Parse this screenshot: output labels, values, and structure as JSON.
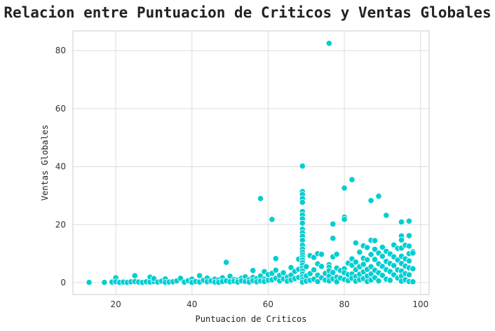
{
  "chart_data": {
    "type": "scatter",
    "title": "Relacion entre Puntuacion de Criticos y Ventas Globales",
    "xlabel": "Puntuacion de Criticos",
    "ylabel": "Ventas Globales",
    "xlim": [
      8.75,
      102.25
    ],
    "ylim": [
      -4.1,
      86.8
    ],
    "xticks": [
      20,
      40,
      60,
      80,
      100
    ],
    "yticks": [
      0,
      20,
      40,
      60,
      80
    ],
    "grid": true,
    "marker_color": "#00CED1",
    "marker_edge_color": "#ffffff",
    "points": [
      [
        13,
        0.1
      ],
      [
        17,
        0.1
      ],
      [
        19,
        0.2
      ],
      [
        20,
        1.7
      ],
      [
        20,
        0.3
      ],
      [
        21,
        0.1
      ],
      [
        22,
        0.2
      ],
      [
        23,
        0.1
      ],
      [
        24,
        0.3
      ],
      [
        25,
        2.4
      ],
      [
        25,
        0.4
      ],
      [
        26,
        0.2
      ],
      [
        27,
        0.1
      ],
      [
        28,
        0.3
      ],
      [
        29,
        1.9
      ],
      [
        29,
        0.2
      ],
      [
        30,
        0.4
      ],
      [
        30,
        1.4
      ],
      [
        31,
        0.2
      ],
      [
        32,
        0.5
      ],
      [
        33,
        1.3
      ],
      [
        33,
        0.1
      ],
      [
        34,
        0.2
      ],
      [
        35,
        0.3
      ],
      [
        36,
        0.6
      ],
      [
        37,
        1.5
      ],
      [
        38,
        0.2
      ],
      [
        39,
        0.7
      ],
      [
        40,
        1.2
      ],
      [
        40,
        0.1
      ],
      [
        41,
        0.4
      ],
      [
        42,
        2.4
      ],
      [
        42,
        0.2
      ],
      [
        43,
        0.8
      ],
      [
        44,
        1.6
      ],
      [
        44,
        0.3
      ],
      [
        45,
        0.6
      ],
      [
        46,
        1.2
      ],
      [
        46,
        0.2
      ],
      [
        47,
        0.9
      ],
      [
        47,
        0.1
      ],
      [
        48,
        1.7
      ],
      [
        48,
        0.4
      ],
      [
        49,
        7.0
      ],
      [
        49,
        0.6
      ],
      [
        50,
        2.2
      ],
      [
        50,
        0.3
      ],
      [
        51,
        1.1
      ],
      [
        51,
        0.5
      ],
      [
        52,
        0.8
      ],
      [
        52,
        0.2
      ],
      [
        53,
        1.5
      ],
      [
        53,
        0.6
      ],
      [
        54,
        2.0
      ],
      [
        54,
        0.4
      ],
      [
        55,
        1.0
      ],
      [
        55,
        0.2
      ],
      [
        56,
        4.2
      ],
      [
        56,
        1.8
      ],
      [
        56,
        0.7
      ],
      [
        57,
        1.4
      ],
      [
        57,
        0.3
      ],
      [
        58,
        29.0
      ],
      [
        58,
        2.3
      ],
      [
        58,
        0.6
      ],
      [
        59,
        3.8
      ],
      [
        59,
        1.2
      ],
      [
        59,
        0.4
      ],
      [
        60,
        2.8
      ],
      [
        60,
        0.8
      ],
      [
        61,
        21.8
      ],
      [
        61,
        3.2
      ],
      [
        61,
        1.0
      ],
      [
        62,
        8.3
      ],
      [
        62,
        4.3
      ],
      [
        62,
        1.5
      ],
      [
        63,
        2.5
      ],
      [
        63,
        0.6
      ],
      [
        64,
        3.4
      ],
      [
        64,
        1.3
      ],
      [
        65,
        1.9
      ],
      [
        65,
        0.5
      ],
      [
        66,
        5.2
      ],
      [
        66,
        2.6
      ],
      [
        66,
        0.9
      ],
      [
        67,
        3.9
      ],
      [
        67,
        1.4
      ],
      [
        68,
        8.1
      ],
      [
        68,
        4.6
      ],
      [
        68,
        1.8
      ],
      [
        69,
        40.2
      ],
      [
        69,
        31.4
      ],
      [
        69,
        30.4
      ],
      [
        69,
        29.0
      ],
      [
        69,
        27.7
      ],
      [
        69,
        24.5
      ],
      [
        69,
        23.3
      ],
      [
        69,
        22.0
      ],
      [
        69,
        20.5
      ],
      [
        69,
        18.4
      ],
      [
        69,
        17.2
      ],
      [
        69,
        16.0
      ],
      [
        69,
        14.6
      ],
      [
        69,
        12.9
      ],
      [
        69,
        11.6
      ],
      [
        69,
        10.5
      ],
      [
        69,
        9.6
      ],
      [
        69,
        8.7
      ],
      [
        69,
        7.8
      ],
      [
        69,
        6.9
      ],
      [
        69,
        6.0
      ],
      [
        69,
        5.0
      ],
      [
        69,
        4.0
      ],
      [
        69,
        3.0
      ],
      [
        69,
        2.0
      ],
      [
        69,
        1.0
      ],
      [
        69,
        0.2
      ],
      [
        70,
        5.5
      ],
      [
        70,
        2.3
      ],
      [
        70,
        0.5
      ],
      [
        71,
        9.3
      ],
      [
        71,
        3.1
      ],
      [
        71,
        0.8
      ],
      [
        72,
        8.7
      ],
      [
        72,
        4.4
      ],
      [
        72,
        1.2
      ],
      [
        73,
        10.0
      ],
      [
        73,
        6.5
      ],
      [
        73,
        2.6
      ],
      [
        73,
        0.4
      ],
      [
        74,
        9.8
      ],
      [
        74,
        5.6
      ],
      [
        74,
        1.7
      ],
      [
        75,
        3.2
      ],
      [
        75,
        0.9
      ],
      [
        76,
        82.5
      ],
      [
        76,
        6.2
      ],
      [
        76,
        5.3
      ],
      [
        76,
        4.1
      ],
      [
        76,
        2.2
      ],
      [
        76,
        0.6
      ],
      [
        77,
        20.2
      ],
      [
        77,
        15.3
      ],
      [
        77,
        8.9
      ],
      [
        77,
        3.5
      ],
      [
        77,
        1.3
      ],
      [
        78,
        9.8
      ],
      [
        78,
        5.0
      ],
      [
        78,
        1.9
      ],
      [
        78,
        0.3
      ],
      [
        79,
        4.2
      ],
      [
        79,
        1.6
      ],
      [
        80,
        32.6
      ],
      [
        80,
        22.6
      ],
      [
        80,
        21.8
      ],
      [
        80,
        4.8
      ],
      [
        80,
        3.4
      ],
      [
        80,
        1.1
      ],
      [
        81,
        6.7
      ],
      [
        81,
        2.8
      ],
      [
        81,
        0.7
      ],
      [
        82,
        35.5
      ],
      [
        82,
        8.2
      ],
      [
        82,
        6.0
      ],
      [
        82,
        3.0
      ],
      [
        82,
        1.5
      ],
      [
        83,
        13.7
      ],
      [
        83,
        7.1
      ],
      [
        83,
        4.5
      ],
      [
        83,
        2.1
      ],
      [
        83,
        0.5
      ],
      [
        84,
        10.5
      ],
      [
        84,
        5.5
      ],
      [
        84,
        2.9
      ],
      [
        84,
        1.0
      ],
      [
        85,
        12.7
      ],
      [
        85,
        8.4
      ],
      [
        85,
        6.3
      ],
      [
        85,
        3.7
      ],
      [
        85,
        1.4
      ],
      [
        86,
        12.1
      ],
      [
        86,
        7.9
      ],
      [
        86,
        4.6
      ],
      [
        86,
        2.3
      ],
      [
        86,
        0.4
      ],
      [
        87,
        28.3
      ],
      [
        87,
        14.6
      ],
      [
        87,
        9.7
      ],
      [
        87,
        5.5
      ],
      [
        87,
        3.0
      ],
      [
        87,
        0.9
      ],
      [
        88,
        14.5
      ],
      [
        88,
        11.5
      ],
      [
        88,
        8.0
      ],
      [
        88,
        4.3
      ],
      [
        88,
        1.7
      ],
      [
        89,
        29.8
      ],
      [
        89,
        10.2
      ],
      [
        89,
        6.5
      ],
      [
        89,
        3.4
      ],
      [
        89,
        0.6
      ],
      [
        90,
        12.2
      ],
      [
        90,
        9.1
      ],
      [
        90,
        5.6
      ],
      [
        90,
        2.5
      ],
      [
        91,
        23.2
      ],
      [
        91,
        10.8
      ],
      [
        91,
        7.3
      ],
      [
        91,
        4.5
      ],
      [
        91,
        1.2
      ],
      [
        92,
        9.9
      ],
      [
        92,
        6.6
      ],
      [
        92,
        3.8
      ],
      [
        92,
        0.8
      ],
      [
        93,
        13.0
      ],
      [
        93,
        8.9
      ],
      [
        93,
        5.9
      ],
      [
        93,
        2.7
      ],
      [
        94,
        11.8
      ],
      [
        94,
        7.8
      ],
      [
        94,
        4.4
      ],
      [
        94,
        1.6
      ],
      [
        95,
        20.9
      ],
      [
        95,
        16.1
      ],
      [
        95,
        14.7
      ],
      [
        95,
        11.9
      ],
      [
        95,
        9.1
      ],
      [
        95,
        6.6
      ],
      [
        95,
        4.0
      ],
      [
        95,
        2.3
      ],
      [
        95,
        0.5
      ],
      [
        96,
        12.9
      ],
      [
        96,
        8.2
      ],
      [
        96,
        5.7
      ],
      [
        96,
        3.1
      ],
      [
        96,
        1.0
      ],
      [
        97,
        21.2
      ],
      [
        97,
        16.2
      ],
      [
        97,
        12.6
      ],
      [
        97,
        10.0
      ],
      [
        97,
        7.5
      ],
      [
        97,
        5.1
      ],
      [
        97,
        2.7
      ],
      [
        97,
        0.4
      ],
      [
        98,
        10.7
      ],
      [
        98,
        10.2
      ],
      [
        98,
        4.8
      ],
      [
        98,
        0.3
      ]
    ]
  }
}
